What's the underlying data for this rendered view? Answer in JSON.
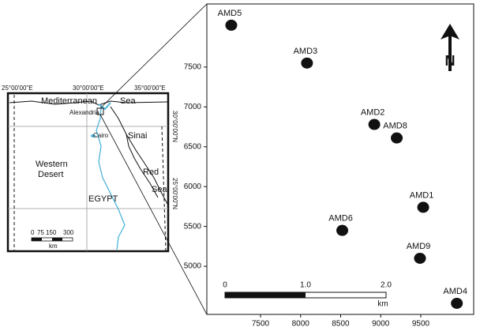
{
  "chart_data": {
    "type": "scatter",
    "x": [
      7135,
      8080,
      8920,
      9200,
      9530,
      8520,
      9490,
      9950
    ],
    "values": [
      8025,
      7550,
      6780,
      6610,
      5740,
      5450,
      5100,
      4535
    ],
    "point_labels": [
      "AMD5",
      "AMD3",
      "AMD2",
      "AMD8",
      "AMD1",
      "AMD6",
      "AMD9",
      "AMD4"
    ],
    "color": "#111111",
    "xlim": [
      6830,
      10160
    ],
    "ylim": [
      4396,
      8292
    ],
    "xticks": [
      7500,
      8000,
      8500,
      9000,
      9500
    ],
    "yticks": [
      5000,
      5500,
      6000,
      6500,
      7000,
      7500
    ],
    "scale_bar": {
      "labels": [
        "0",
        "1.0",
        "2.0"
      ],
      "unit": "km"
    },
    "north": "N"
  },
  "inset_map": {
    "longitudes": [
      "25°00'00\"E",
      "30°00'00\"E",
      "35°00'00\"E"
    ],
    "latitudes": [
      "30°00'00\"N",
      "25°00'00\"N"
    ],
    "places": [
      "Mediterranean",
      "Sea",
      "Alexandria",
      "Cairo",
      "Sinai",
      "Western",
      "Desert",
      "EGYPT",
      "Red",
      "Sea"
    ],
    "scale": [
      "0",
      "75",
      "150",
      "300",
      "km"
    ]
  }
}
